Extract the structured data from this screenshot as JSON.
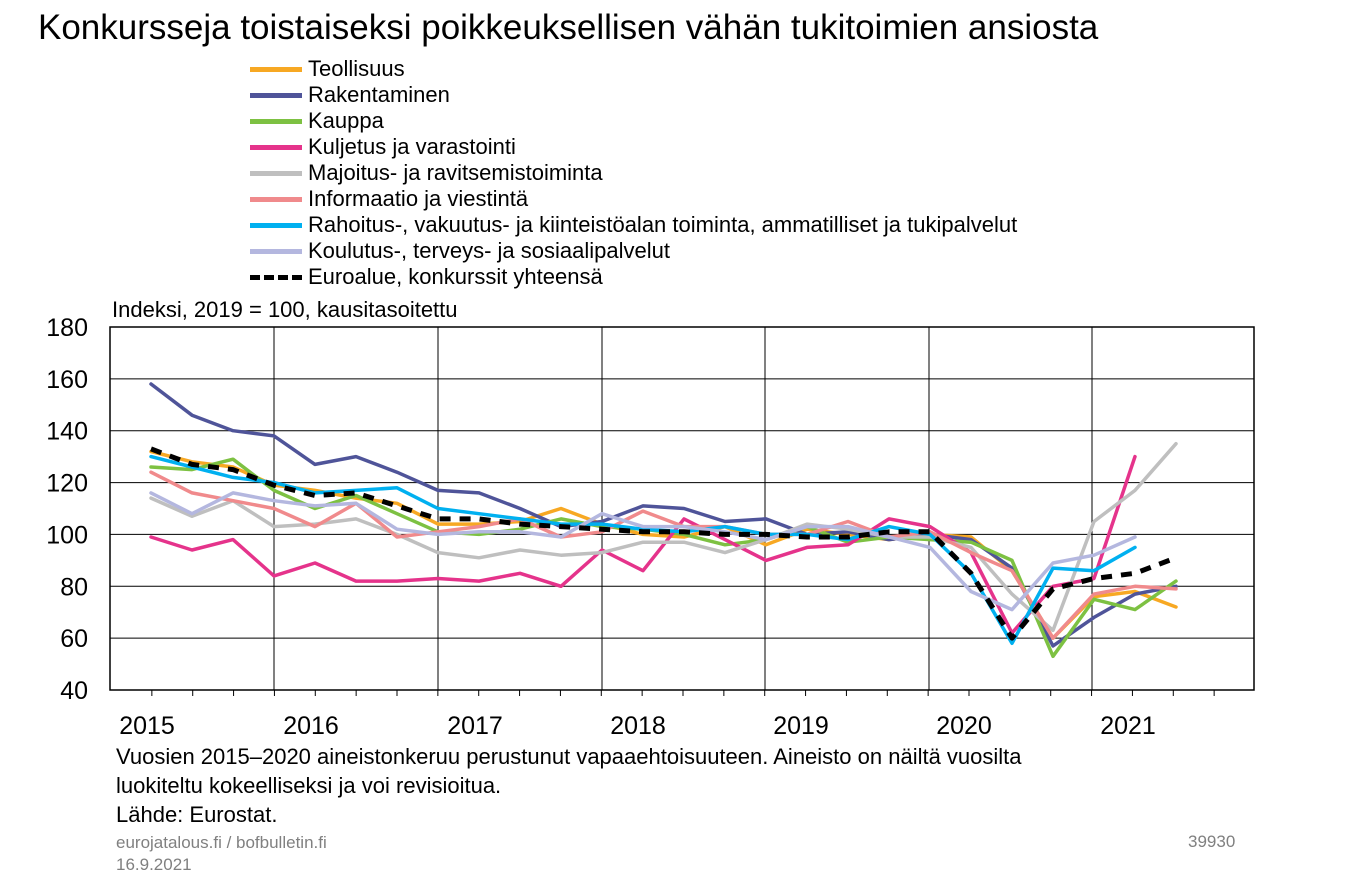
{
  "title": "Konkursseja toistaiseksi poikkeuksellisen vähän tukitoimien ansiosta",
  "unit_label": "Indeksi, 2019 = 100, kausitasoitettu",
  "note_lines": [
    "Vuosien 2015–2020 aineistonkeruu perustunut vapaaehtoisuuteen. Aineisto on näiltä vuosilta",
    "luokiteltu kokeelliseksi ja voi revisioitua.",
    "Lähde: Eurostat."
  ],
  "footer": {
    "sites": "eurojatalous.fi  / bofbulletin.fi",
    "date": "16.9.2021",
    "code": "39930"
  },
  "chart_data": {
    "type": "line",
    "ylim": [
      40,
      180
    ],
    "yticks": [
      40,
      60,
      80,
      100,
      120,
      140,
      160,
      180
    ],
    "xtick_labels": [
      "2015",
      "2016",
      "2017",
      "2018",
      "2019",
      "2020",
      "2021"
    ],
    "grid": true,
    "legend_position": "top",
    "x": [
      "2015Q1",
      "2015Q2",
      "2015Q3",
      "2015Q4",
      "2016Q1",
      "2016Q2",
      "2016Q3",
      "2016Q4",
      "2017Q1",
      "2017Q2",
      "2017Q3",
      "2017Q4",
      "2018Q1",
      "2018Q2",
      "2018Q3",
      "2018Q4",
      "2019Q1",
      "2019Q2",
      "2019Q3",
      "2019Q4",
      "2020Q1",
      "2020Q2",
      "2020Q3",
      "2020Q4",
      "2021Q1",
      "2021Q2",
      "2021Q3"
    ],
    "series": [
      {
        "name": "Teollisuus",
        "color": "#F7A823",
        "dashed": false,
        "values": [
          132,
          128,
          126,
          119,
          117,
          114,
          112,
          104,
          104,
          105,
          110,
          104,
          100,
          99,
          103,
          96,
          102,
          100,
          98,
          100,
          99,
          86,
          60,
          76,
          78,
          72,
          null
        ]
      },
      {
        "name": "Rakentaminen",
        "color": "#4F5499",
        "dashed": false,
        "values": [
          158,
          146,
          140,
          138,
          127,
          130,
          124,
          117,
          116,
          110,
          103,
          105,
          111,
          110,
          105,
          106,
          100,
          101,
          98,
          100,
          98,
          87,
          57,
          68,
          77,
          80,
          null
        ]
      },
      {
        "name": "Kauppa",
        "color": "#7DC142",
        "dashed": false,
        "values": [
          126,
          125,
          129,
          117,
          110,
          115,
          108,
          101,
          100,
          102,
          106,
          103,
          102,
          100,
          96,
          98,
          103,
          97,
          99,
          98,
          97,
          90,
          53,
          75,
          71,
          82,
          null
        ]
      },
      {
        "name": "Kuljetus ja varastointi",
        "color": "#E5338B",
        "dashed": false,
        "values": [
          99,
          94,
          98,
          84,
          89,
          82,
          82,
          83,
          82,
          85,
          80,
          94,
          86,
          106,
          98,
          90,
          95,
          96,
          106,
          103,
          93,
          62,
          80,
          83,
          130,
          null,
          null
        ]
      },
      {
        "name": "Majoitus- ja ravitsemistoiminta",
        "color": "#BFBFBF",
        "dashed": false,
        "values": [
          114,
          107,
          113,
          103,
          104,
          106,
          100,
          93,
          91,
          94,
          92,
          93,
          97,
          97,
          93,
          98,
          104,
          102,
          99,
          99,
          95,
          77,
          63,
          105,
          117,
          135,
          null
        ]
      },
      {
        "name": "Informaatio ja viestintä",
        "color": "#F08A8C",
        "dashed": false,
        "values": [
          124,
          116,
          113,
          110,
          103,
          112,
          99,
          101,
          103,
          106,
          99,
          101,
          109,
          103,
          103,
          100,
          100,
          105,
          99,
          101,
          93,
          86,
          60,
          77,
          80,
          79,
          null
        ]
      },
      {
        "name": "Rahoitus-, vakuutus- ja kiinteistöalan toiminta, ammatilliset ja tukipalvelut",
        "color": "#00B0F0",
        "dashed": false,
        "values": [
          130,
          126,
          122,
          120,
          116,
          117,
          118,
          110,
          108,
          106,
          104,
          104,
          102,
          101,
          103,
          100,
          100,
          98,
          103,
          100,
          85,
          58,
          87,
          86,
          95,
          null,
          null
        ]
      },
      {
        "name": "Koulutus-, terveys- ja sosiaalipalvelut",
        "color": "#B4B7DF",
        "dashed": false,
        "values": [
          116,
          108,
          116,
          113,
          111,
          112,
          102,
          100,
          101,
          101,
          99,
          108,
          103,
          103,
          101,
          98,
          103,
          103,
          99,
          95,
          78,
          71,
          89,
          92,
          99,
          null,
          null
        ]
      },
      {
        "name": "Euroalue, konkurssit yhteensä",
        "color": "#000000",
        "dashed": true,
        "values": [
          133,
          127,
          125,
          119,
          115,
          116,
          111,
          106,
          106,
          104,
          103,
          102,
          101,
          101,
          100,
          100,
          99,
          99,
          101,
          101,
          85,
          60,
          79,
          83,
          85,
          91,
          null
        ]
      }
    ]
  }
}
